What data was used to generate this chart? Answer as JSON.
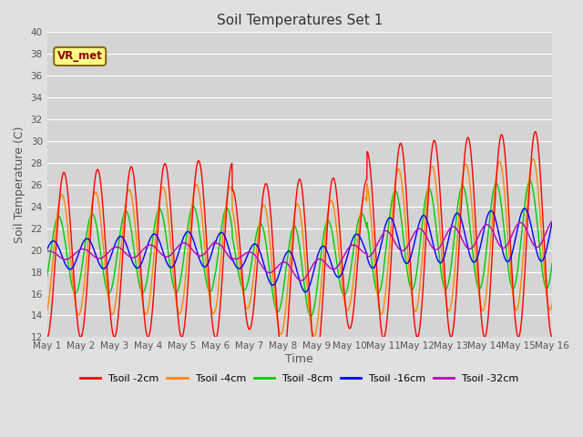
{
  "title": "Soil Temperatures Set 1",
  "xlabel": "Time",
  "ylabel": "Soil Temperature (C)",
  "ylim": [
    12,
    40
  ],
  "yticks": [
    12,
    14,
    16,
    18,
    20,
    22,
    24,
    26,
    28,
    30,
    32,
    34,
    36,
    38,
    40
  ],
  "xlim": [
    0,
    15
  ],
  "xtick_labels": [
    "May 1",
    "May 2",
    "May 3",
    "May 4",
    "May 5",
    "May 6",
    "May 7",
    "May 8",
    "May 9",
    "May 10",
    "May 11",
    "May 12",
    "May 13",
    "May 14",
    "May 15",
    "May 16"
  ],
  "xtick_positions": [
    0,
    1,
    2,
    3,
    4,
    5,
    6,
    7,
    8,
    9,
    10,
    11,
    12,
    13,
    14,
    15
  ],
  "legend_labels": [
    "Tsoil -2cm",
    "Tsoil -4cm",
    "Tsoil -8cm",
    "Tsoil -16cm",
    "Tsoil -32cm"
  ],
  "line_colors": [
    "#ff0000",
    "#ff8800",
    "#00cc00",
    "#0000ff",
    "#bb00bb"
  ],
  "annotation_text": "VR_met",
  "background_color": "#e0e0e0",
  "plot_bg_color": "#d4d4d4",
  "grid_color": "#ffffff",
  "n_points": 1440
}
